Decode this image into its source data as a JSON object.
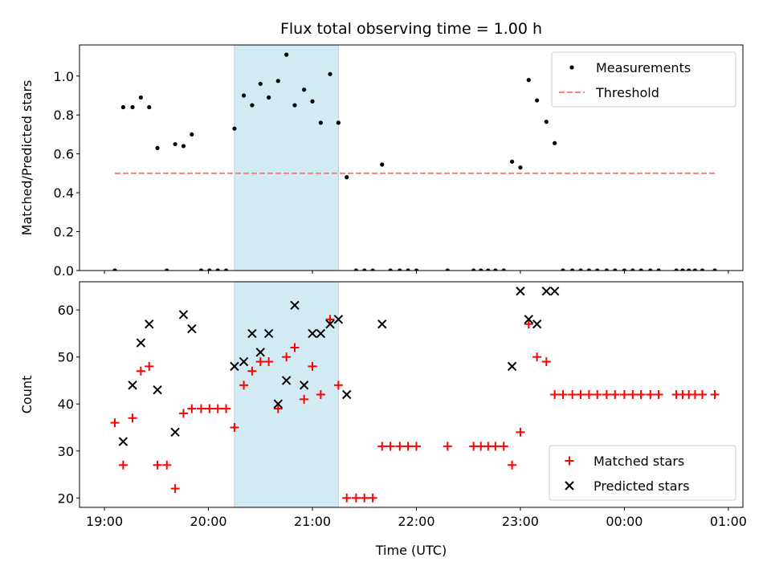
{
  "chart_data": [
    {
      "type": "scatter",
      "title": "Flux total observing time = 1.00 h",
      "xlabel": "",
      "ylabel": "Matched/Predicted stars",
      "ylim": [
        0,
        1.16
      ],
      "yticks": [
        0.0,
        0.2,
        0.4,
        0.6,
        0.8,
        1.0
      ],
      "ytick_labels": [
        "0.0",
        "0.2",
        "0.4",
        "0.6",
        "0.8",
        "1.0"
      ],
      "x_range_hours": [
        18.76,
        25.14
      ],
      "shaded_interval_hours": [
        20.25,
        21.25
      ],
      "shaded_color": "#add8e6",
      "legend_position": "upper right",
      "series": [
        {
          "name": "Measurements",
          "marker": "dot",
          "color": "#000000",
          "x": [
            19.1,
            19.18,
            19.27,
            19.35,
            19.43,
            19.51,
            19.6,
            19.68,
            19.76,
            19.84,
            19.93,
            20.01,
            20.09,
            20.17,
            20.25,
            20.34,
            20.42,
            20.5,
            20.58,
            20.67,
            20.75,
            20.83,
            20.92,
            21.0,
            21.08,
            21.17,
            21.25,
            21.33,
            21.42,
            21.5,
            21.58,
            21.67,
            21.75,
            21.84,
            21.92,
            22.0,
            22.3,
            22.55,
            22.62,
            22.69,
            22.76,
            22.84,
            22.92,
            23.0,
            23.08,
            23.16,
            23.25,
            23.33,
            23.41,
            23.5,
            23.58,
            23.66,
            23.74,
            23.83,
            23.91,
            24.0,
            24.08,
            24.16,
            24.25,
            24.33,
            24.5,
            24.56,
            24.62,
            24.68,
            24.75,
            24.87
          ],
          "y": [
            0.0,
            0.84,
            0.84,
            0.89,
            0.84,
            0.63,
            0.0,
            0.65,
            0.64,
            0.7,
            0.0,
            0.0,
            0.0,
            0.0,
            0.73,
            0.9,
            0.85,
            0.96,
            0.89,
            0.975,
            1.11,
            0.85,
            0.93,
            0.87,
            0.76,
            1.01,
            0.76,
            0.48,
            0.0,
            0.0,
            0.0,
            0.545,
            0.0,
            0.0,
            0.0,
            0.0,
            0.0,
            0.0,
            0.0,
            0.0,
            0.0,
            0.0,
            0.56,
            0.53,
            0.98,
            0.875,
            0.765,
            0.655,
            0.0,
            0.0,
            0.0,
            0.0,
            0.0,
            0.0,
            0.0,
            0.0,
            0.0,
            0.0,
            0.0,
            0.0,
            0.0,
            0.0,
            0.0,
            0.0,
            0.0,
            0.0
          ]
        },
        {
          "name": "Threshold",
          "style": "dashed",
          "color": "#ff7f7f",
          "x": [
            19.1,
            24.87
          ],
          "y": [
            0.5,
            0.5
          ]
        }
      ]
    },
    {
      "type": "scatter",
      "title": "",
      "xlabel": "Time (UTC)",
      "ylabel": "Count",
      "ylim": [
        18,
        66
      ],
      "yticks": [
        20,
        30,
        40,
        50,
        60
      ],
      "ytick_labels": [
        "20",
        "30",
        "40",
        "50",
        "60"
      ],
      "x_range_hours": [
        18.76,
        25.14
      ],
      "xticks_hours": [
        19,
        20,
        21,
        22,
        23,
        24,
        25
      ],
      "xtick_labels": [
        "19:00",
        "20:00",
        "21:00",
        "22:00",
        "23:00",
        "00:00",
        "01:00"
      ],
      "shaded_interval_hours": [
        20.25,
        21.25
      ],
      "shaded_color": "#add8e6",
      "legend_position": "lower right",
      "series": [
        {
          "name": "Matched stars",
          "marker": "plus",
          "color": "#ff0000",
          "x": [
            19.1,
            19.18,
            19.27,
            19.35,
            19.43,
            19.51,
            19.6,
            19.68,
            19.76,
            19.84,
            19.93,
            20.01,
            20.09,
            20.17,
            20.25,
            20.34,
            20.42,
            20.5,
            20.58,
            20.67,
            20.75,
            20.83,
            20.92,
            21.0,
            21.08,
            21.17,
            21.25,
            21.33,
            21.42,
            21.5,
            21.58,
            21.67,
            21.75,
            21.84,
            21.92,
            22.0,
            22.3,
            22.55,
            22.62,
            22.69,
            22.76,
            22.84,
            22.92,
            23.0,
            23.08,
            23.16,
            23.25,
            23.33,
            23.41,
            23.5,
            23.58,
            23.66,
            23.74,
            23.83,
            23.91,
            24.0,
            24.08,
            24.16,
            24.25,
            24.33,
            24.5,
            24.56,
            24.62,
            24.68,
            24.75,
            24.87
          ],
          "y": [
            36,
            27,
            37,
            47,
            48,
            27,
            27,
            22,
            38,
            39,
            39,
            39,
            39,
            39,
            35,
            44,
            47,
            49,
            49,
            39,
            50,
            52,
            41,
            48,
            42,
            58,
            44,
            20,
            20,
            20,
            20,
            31,
            31,
            31,
            31,
            31,
            31,
            31,
            31,
            31,
            31,
            31,
            27,
            34,
            57,
            50,
            49,
            42,
            42,
            42,
            42,
            42,
            42,
            42,
            42,
            42,
            42,
            42,
            42,
            42,
            42,
            42,
            42,
            42,
            42,
            42
          ]
        },
        {
          "name": "Predicted stars",
          "marker": "x",
          "color": "#000000",
          "x": [
            19.18,
            19.27,
            19.35,
            19.43,
            19.51,
            19.68,
            19.76,
            19.84,
            20.25,
            20.34,
            20.42,
            20.5,
            20.58,
            20.67,
            20.75,
            20.83,
            20.92,
            21.0,
            21.08,
            21.17,
            21.25,
            21.33,
            21.67,
            22.92,
            23.0,
            23.08,
            23.16,
            23.25,
            23.33
          ],
          "y": [
            32,
            44,
            53,
            57,
            43,
            34,
            59,
            56,
            48,
            49,
            55,
            51,
            55,
            40,
            45,
            61,
            44,
            55,
            55,
            57,
            58,
            42,
            57,
            48,
            64,
            58,
            57,
            64,
            64
          ]
        }
      ]
    }
  ]
}
